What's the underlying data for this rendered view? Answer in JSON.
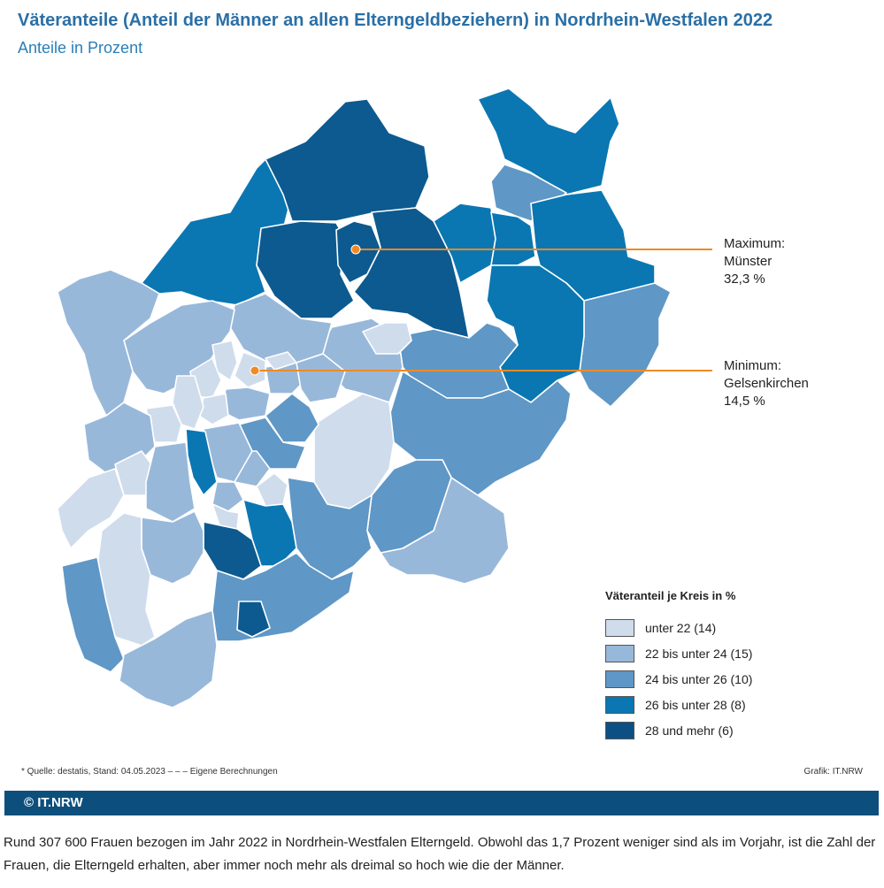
{
  "header": {
    "title": "Väteranteile (Anteil der Männer an allen Elterngeldbeziehern) in Nordrhein-Westfalen 2022",
    "subtitle": "Anteile in Prozent"
  },
  "callouts": {
    "max": {
      "label": "Maximum:",
      "place": "Münster",
      "value": "32,3 %"
    },
    "min": {
      "label": "Minimum:",
      "place": "Gelsenkirchen",
      "value": "14,5 %"
    }
  },
  "colors": {
    "c1": "#cfdcec",
    "c2": "#98b8da",
    "c3": "#5f97c6",
    "c4": "#0a77b2",
    "c5": "#0c5a8f",
    "accent": "#f08a24",
    "bar": "#0d4f7c"
  },
  "legend": {
    "title": "Väteranteil je Kreis in %",
    "items": [
      {
        "label": "unter 22 (14)",
        "color": "#cfdcec"
      },
      {
        "label": "22 bis unter 24 (15)",
        "color": "#98b8da"
      },
      {
        "label": "24 bis unter 26 (10)",
        "color": "#5f97c6"
      },
      {
        "label": "26 bis unter 28 (8)",
        "color": "#0a77b2"
      },
      {
        "label": "28 und mehr (6)",
        "color": "#0c4f85"
      }
    ]
  },
  "footer": {
    "source": "* Quelle: destatis, Stand: 04.05.2023 – – – Eigene Berechnungen",
    "credit": "Grafik: IT.NRW",
    "copyright": "© IT.NRW"
  },
  "description": "Rund 307 600 Frauen bezogen im Jahr 2022 in Nordrhein-Westfalen Elterngeld. Obwohl das 1,7 Prozent weniger sind als im Vorjahr, ist die Zahl der Frauen, die Elterngeld erhalten, aber immer noch mehr als dreimal so hoch wie die der Männer."
}
